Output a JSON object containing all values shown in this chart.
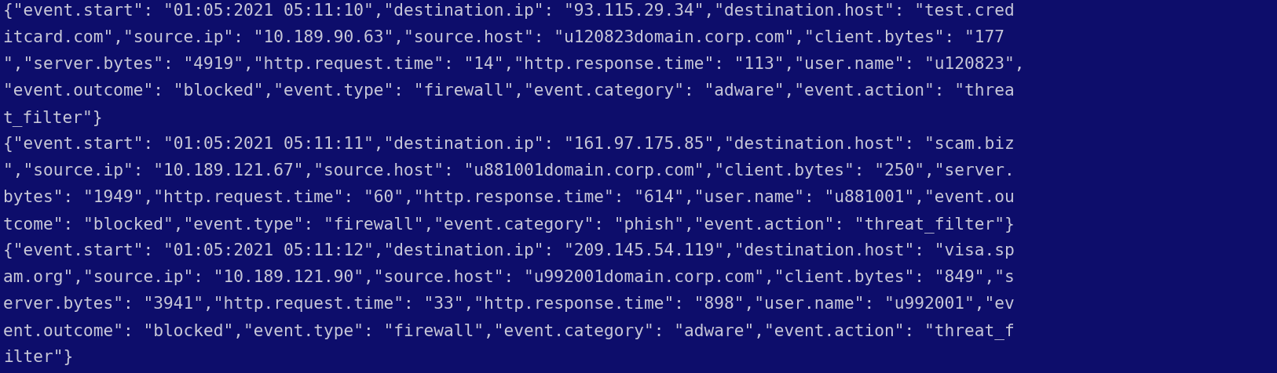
{
  "background_color": "#0d0d6b",
  "text_color": "#c8c8d8",
  "font_size": 15.2,
  "lines": [
    "{\"event.start\": \"01:05:2021 05:11:10\",\"destination.ip\": \"93.115.29.34\",\"destination.host\": \"test.cred",
    "itcard.com\",\"source.ip\": \"10.189.90.63\",\"source.host\": \"u120823domain.corp.com\",\"client.bytes\": \"177",
    "\",\"server.bytes\": \"4919\",\"http.request.time\": \"14\",\"http.response.time\": \"113\",\"user.name\": \"u120823\",",
    "\"event.outcome\": \"blocked\",\"event.type\": \"firewall\",\"event.category\": \"adware\",\"event.action\": \"threa",
    "t_filter\"}",
    "{\"event.start\": \"01:05:2021 05:11:11\",\"destination.ip\": \"161.97.175.85\",\"destination.host\": \"scam.biz",
    "\",\"source.ip\": \"10.189.121.67\",\"source.host\": \"u881001domain.corp.com\",\"client.bytes\": \"250\",\"server.",
    "bytes\": \"1949\",\"http.request.time\": \"60\",\"http.response.time\": \"614\",\"user.name\": \"u881001\",\"event.ou",
    "tcome\": \"blocked\",\"event.type\": \"firewall\",\"event.category\": \"phish\",\"event.action\": \"threat_filter\"}",
    "{\"event.start\": \"01:05:2021 05:11:12\",\"destination.ip\": \"209.145.54.119\",\"destination.host\": \"visa.sp",
    "am.org\",\"source.ip\": \"10.189.121.90\",\"source.host\": \"u992001domain.corp.com\",\"client.bytes\": \"849\",\"s",
    "erver.bytes\": \"3941\",\"http.request.time\": \"33\",\"http.response.time\": \"898\",\"user.name\": \"u992001\",\"ev",
    "ent.outcome\": \"blocked\",\"event.type\": \"firewall\",\"event.category\": \"adware\",\"event.action\": \"threat_f",
    "ilter\"}"
  ],
  "fig_width": 16.26,
  "fig_height": 4.76,
  "dpi": 100
}
